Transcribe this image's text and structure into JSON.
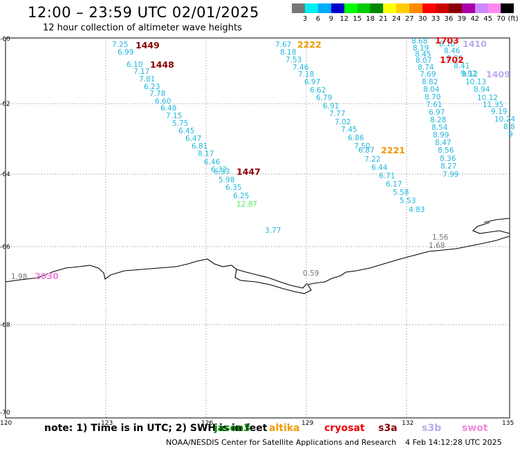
{
  "title": "12:00 – 23:59 UTC 02/01/2025",
  "subtitle": "12 hour collection of altimeter wave heights",
  "colorscale": {
    "unit_label": "(ft)",
    "ticks": [
      "3",
      "6",
      "9",
      "12",
      "15",
      "18",
      "21",
      "24",
      "27",
      "30",
      "33",
      "36",
      "39",
      "42",
      "45",
      "70"
    ],
    "colors": [
      "#777777",
      "#00eeee",
      "#00aaff",
      "#0000cc",
      "#00ff00",
      "#00cc00",
      "#008800",
      "#ffff00",
      "#ffcc00",
      "#ff8800",
      "#ff0000",
      "#cc0000",
      "#880000",
      "#aa00aa",
      "#cc88ff",
      "#ff88ee",
      "#000000"
    ]
  },
  "axes": {
    "lat_labels": [
      "-60",
      "-62",
      "-64",
      "-66",
      "-68",
      "-70"
    ],
    "lon_labels": [
      "120",
      "123",
      "126",
      "129",
      "132",
      "135"
    ],
    "lat_range": [
      -70,
      -60
    ],
    "lon_range": [
      120,
      135
    ],
    "grid": "dotted"
  },
  "tracks": [
    {
      "name": "track-a",
      "color": "#22b8dd",
      "values": [
        "7.25",
        "6.99",
        "6.10",
        "7.17",
        "7.81",
        "6.23",
        "7.78",
        "6.60",
        "6.48",
        "7.15",
        "5.75",
        "6.45",
        "6.47",
        "6.81",
        "8.17",
        "6.46",
        "6.32",
        "6.33",
        "5.98",
        "6.35",
        "6.25"
      ]
    },
    {
      "name": "track-b",
      "color": "#22b8dd",
      "values": [
        "7.67",
        "8.18",
        "7.53",
        "7.46",
        "7.18",
        "6.97",
        "6.62",
        "6.79",
        "6.91",
        "7.77",
        "7.02",
        "7.45",
        "6.86",
        "7.50",
        "6.87",
        "7.22",
        "6.44",
        "6.71",
        "6.17",
        "5.58",
        "5.53",
        "4.83"
      ]
    },
    {
      "name": "track-c",
      "color": "#22b8dd",
      "values": [
        "8.68",
        "8.19",
        "8.45",
        "8.07",
        "8.74",
        "7.69",
        "8.82",
        "8.04",
        "8.70",
        "7.61",
        "6.97",
        "8.28",
        "8.54",
        "8.99",
        "8.47",
        "8.56",
        "8.36",
        "8.27",
        "7.99"
      ]
    },
    {
      "name": "track-d",
      "color": "#22b8dd",
      "values": [
        "6.10",
        "8.46",
        "8.36",
        "8.41",
        "9.92",
        "9.12",
        "10.13",
        "8.94",
        "10.12",
        "11.35",
        "9.19",
        "10.24",
        "8.8",
        "9"
      ]
    }
  ],
  "times": [
    {
      "text": "1449",
      "color": "#880000"
    },
    {
      "text": "1448",
      "color": "#880000"
    },
    {
      "text": "1447",
      "color": "#880000"
    },
    {
      "text": "2222",
      "color": "#ee9900"
    },
    {
      "text": "2221",
      "color": "#ee9900"
    },
    {
      "text": "1703",
      "color": "#ee0000"
    },
    {
      "text": "1702",
      "color": "#ee0000"
    },
    {
      "text": "1410",
      "color": "#bbaaee"
    },
    {
      "text": "1409",
      "color": "#bbaaee"
    },
    {
      "text": "2030",
      "color": "#ee88dd"
    }
  ],
  "misc_values": [
    {
      "text": "12.87",
      "color": "#55ee55"
    },
    {
      "text": "3.77",
      "color": "#22b8dd"
    },
    {
      "text": "1.56",
      "color": "#777777"
    },
    {
      "text": "1.68",
      "color": "#777777"
    },
    {
      "text": "0.59",
      "color": "#777777"
    },
    {
      "text": "1.98",
      "color": "#777777"
    }
  ],
  "note": "note: 1) Time is in UTC; 2) SWH is in feet",
  "legend": [
    {
      "label": "jason3",
      "color": "#008800"
    },
    {
      "label": "altika",
      "color": "#ee9900"
    },
    {
      "label": "cryosat",
      "color": "#ee0000"
    },
    {
      "label": "s3a",
      "color": "#880000"
    },
    {
      "label": "s3b",
      "color": "#bbaaee"
    },
    {
      "label": "swot",
      "color": "#ee88dd"
    }
  ],
  "credit": "NOAA/NESDIS Center for Satellite Applications and Research",
  "stamp": "4 Feb 14:12:28 UTC 2025"
}
